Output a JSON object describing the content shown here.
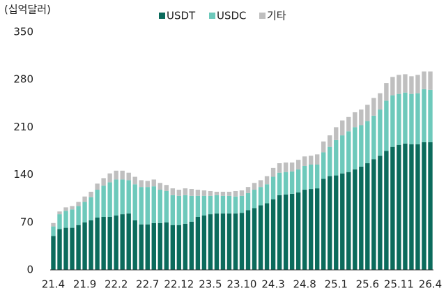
{
  "chart_data": {
    "type": "stacked_bar",
    "y_label": "(십억달러)",
    "categories": [
      "21.4",
      null,
      null,
      null,
      null,
      "21.9",
      null,
      null,
      null,
      null,
      "22.2",
      null,
      null,
      null,
      null,
      "22.7",
      null,
      null,
      null,
      null,
      "22.12",
      null,
      null,
      null,
      null,
      "23.5",
      null,
      null,
      null,
      null,
      "23.10",
      null,
      null,
      null,
      null,
      "24.3",
      null,
      null,
      null,
      null,
      "24.8",
      null,
      null,
      null,
      null,
      "25.1",
      null,
      null,
      null,
      null,
      "25.6",
      null,
      null,
      null,
      null,
      "25.11",
      null,
      null,
      null,
      null,
      "26.4"
    ],
    "series": [
      {
        "name": "USDT",
        "color": "#0b6b5c",
        "values": [
          50,
          60,
          62,
          62,
          66,
          70,
          73,
          77,
          78,
          78,
          80,
          82,
          83,
          73,
          67,
          67,
          69,
          69,
          70,
          66,
          66,
          68,
          71,
          78,
          80,
          82,
          83,
          83,
          83,
          83,
          84,
          88,
          91,
          95,
          98,
          104,
          110,
          111,
          112,
          114,
          118,
          119,
          120,
          134,
          138,
          139,
          142,
          144,
          148,
          152,
          157,
          163,
          168,
          175,
          181,
          184,
          186,
          185,
          185,
          188,
          188
        ]
      },
      {
        "name": "USDC",
        "color": "#6dc9bb",
        "values": [
          14,
          22,
          25,
          27,
          28,
          30,
          34,
          41,
          46,
          51,
          53,
          51,
          49,
          53,
          55,
          55,
          54,
          49,
          46,
          44,
          43,
          42,
          38,
          31,
          29,
          27,
          27,
          26,
          26,
          25,
          25,
          25,
          27,
          27,
          28,
          33,
          33,
          33,
          33,
          34,
          35,
          36,
          35,
          39,
          43,
          52,
          56,
          60,
          62,
          61,
          62,
          64,
          68,
          74,
          76,
          75,
          75,
          74,
          75,
          78,
          77
        ]
      },
      {
        "name": "기타",
        "color": "#bfbfbf",
        "values": [
          5,
          4,
          5,
          5,
          6,
          8,
          8,
          9,
          11,
          13,
          13,
          13,
          11,
          11,
          10,
          9,
          10,
          10,
          9,
          10,
          9,
          10,
          10,
          9,
          8,
          7,
          5,
          6,
          6,
          8,
          8,
          9,
          10,
          10,
          12,
          13,
          14,
          14,
          13,
          14,
          14,
          13,
          15,
          16,
          17,
          19,
          22,
          21,
          22,
          23,
          24,
          26,
          24,
          26,
          27,
          28,
          27,
          26,
          27,
          26,
          27
        ]
      }
    ],
    "ylim": [
      0,
      350
    ],
    "yticks": [
      0,
      70,
      140,
      210,
      280,
      350
    ],
    "legend": "top"
  }
}
